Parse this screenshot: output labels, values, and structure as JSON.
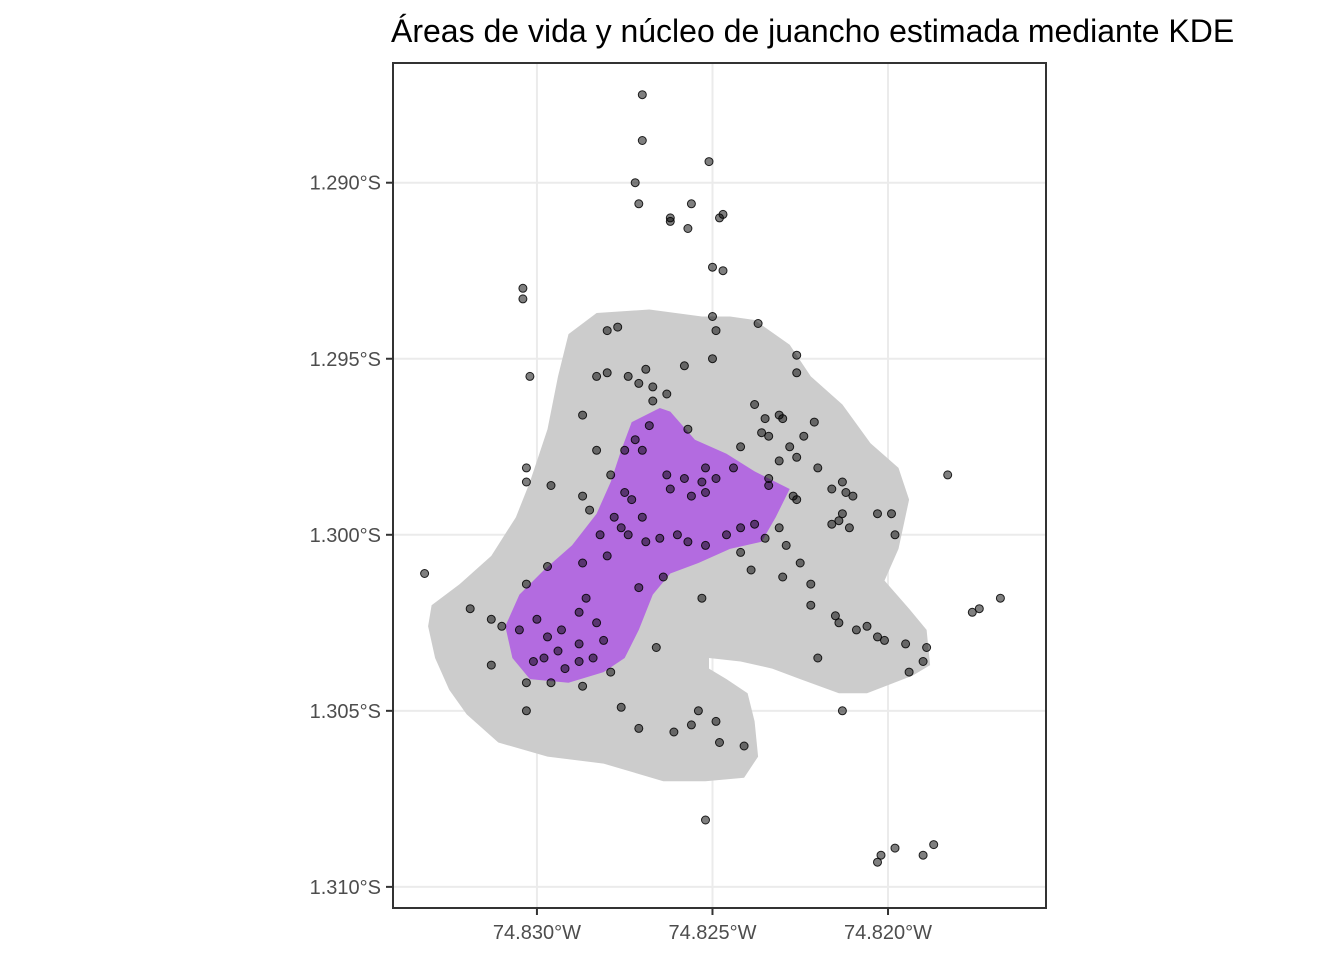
{
  "chart_data": {
    "type": "scatter",
    "title": "Áreas de vida y núcleo de juancho estimada mediante KDE",
    "xlabel": "",
    "ylabel": "",
    "x_ticks": [
      {
        "value": -74.83,
        "label": "74.830°W"
      },
      {
        "value": -74.825,
        "label": "74.825°W"
      },
      {
        "value": -74.82,
        "label": "74.820°W"
      }
    ],
    "y_ticks": [
      {
        "value": -1.29,
        "label": "1.290°S"
      },
      {
        "value": -1.295,
        "label": "1.295°S"
      },
      {
        "value": -1.3,
        "label": "1.300°S"
      },
      {
        "value": -1.305,
        "label": "1.305°S"
      },
      {
        "value": -1.31,
        "label": "1.310°S"
      }
    ],
    "xlim": [
      -74.8341,
      -74.8155
    ],
    "ylim": [
      -1.3106,
      -1.2866
    ],
    "grid": true,
    "colors": {
      "home_range_fill": "#cccccc",
      "core_area_fill": "#b36be0",
      "points": "#000000",
      "point_alpha": 0.5
    },
    "areas": [
      {
        "kind": "home_range",
        "polygon": [
          [
            -74.8283,
            -1.2937
          ],
          [
            -74.8268,
            -1.2936
          ],
          [
            -74.8253,
            -1.2938
          ],
          [
            -74.8245,
            -1.2938
          ],
          [
            -74.8238,
            -1.2939
          ],
          [
            -74.8228,
            -1.2946
          ],
          [
            -74.8222,
            -1.2955
          ],
          [
            -74.8213,
            -1.2963
          ],
          [
            -74.8205,
            -1.2974
          ],
          [
            -74.8197,
            -1.2981
          ],
          [
            -74.8194,
            -1.299
          ],
          [
            -74.8197,
            -1.3004
          ],
          [
            -74.8201,
            -1.3013
          ],
          [
            -74.8194,
            -1.3021
          ],
          [
            -74.8189,
            -1.3027
          ],
          [
            -74.8188,
            -1.3037
          ],
          [
            -74.8193,
            -1.304
          ],
          [
            -74.8206,
            -1.3045
          ],
          [
            -74.8214,
            -1.3045
          ],
          [
            -74.8225,
            -1.3041
          ],
          [
            -74.8233,
            -1.3038
          ],
          [
            -74.8242,
            -1.3036
          ],
          [
            -74.8251,
            -1.3035
          ],
          [
            -74.8251,
            -1.3038
          ],
          [
            -74.8246,
            -1.3041
          ],
          [
            -74.824,
            -1.3045
          ],
          [
            -74.8238,
            -1.3053
          ],
          [
            -74.8237,
            -1.3063
          ],
          [
            -74.8241,
            -1.3069
          ],
          [
            -74.8252,
            -1.307
          ],
          [
            -74.8264,
            -1.307
          ],
          [
            -74.8281,
            -1.3065
          ],
          [
            -74.8297,
            -1.3063
          ],
          [
            -74.8311,
            -1.3059
          ],
          [
            -74.832,
            -1.3051
          ],
          [
            -74.8325,
            -1.3044
          ],
          [
            -74.8329,
            -1.3035
          ],
          [
            -74.8331,
            -1.3026
          ],
          [
            -74.833,
            -1.302
          ],
          [
            -74.8322,
            -1.3014
          ],
          [
            -74.8313,
            -1.3006
          ],
          [
            -74.8306,
            -1.2995
          ],
          [
            -74.8302,
            -1.2985
          ],
          [
            -74.8297,
            -1.297
          ],
          [
            -74.8294,
            -1.2955
          ],
          [
            -74.8291,
            -1.2943
          ]
        ]
      },
      {
        "kind": "core_area",
        "polygon": [
          [
            -74.8273,
            -1.2968
          ],
          [
            -74.8265,
            -1.2964
          ],
          [
            -74.8262,
            -1.2965
          ],
          [
            -74.8255,
            -1.2973
          ],
          [
            -74.8246,
            -1.2977
          ],
          [
            -74.8238,
            -1.2982
          ],
          [
            -74.8228,
            -1.2987
          ],
          [
            -74.8232,
            -1.2995
          ],
          [
            -74.8236,
            -1.3002
          ],
          [
            -74.8245,
            -1.3004
          ],
          [
            -74.8254,
            -1.3008
          ],
          [
            -74.8262,
            -1.3011
          ],
          [
            -74.8267,
            -1.3017
          ],
          [
            -74.8271,
            -1.3027
          ],
          [
            -74.8275,
            -1.3035
          ],
          [
            -74.8281,
            -1.3039
          ],
          [
            -74.8291,
            -1.3042
          ],
          [
            -74.8302,
            -1.3041
          ],
          [
            -74.8307,
            -1.3035
          ],
          [
            -74.8309,
            -1.3026
          ],
          [
            -74.8305,
            -1.3017
          ],
          [
            -74.8298,
            -1.301
          ],
          [
            -74.829,
            -1.3003
          ],
          [
            -74.8283,
            -1.2994
          ],
          [
            -74.8279,
            -1.2985
          ],
          [
            -74.8276,
            -1.2976
          ]
        ]
      }
    ],
    "points": [
      [
        -74.827,
        -1.2875
      ],
      [
        -74.827,
        -1.2888
      ],
      [
        -74.8251,
        -1.2894
      ],
      [
        -74.8272,
        -1.29
      ],
      [
        -74.8271,
        -1.2906
      ],
      [
        -74.8262,
        -1.291
      ],
      [
        -74.8262,
        -1.2911
      ],
      [
        -74.8256,
        -1.2906
      ],
      [
        -74.8248,
        -1.291
      ],
      [
        -74.8247,
        -1.2909
      ],
      [
        -74.8257,
        -1.2913
      ],
      [
        -74.825,
        -1.2924
      ],
      [
        -74.8247,
        -1.2925
      ],
      [
        -74.8304,
        -1.293
      ],
      [
        -74.8304,
        -1.2933
      ],
      [
        -74.8237,
        -1.294
      ],
      [
        -74.825,
        -1.2938
      ],
      [
        -74.8249,
        -1.2942
      ],
      [
        -74.828,
        -1.2942
      ],
      [
        -74.8277,
        -1.2941
      ],
      [
        -74.8226,
        -1.2949
      ],
      [
        -74.825,
        -1.295
      ],
      [
        -74.8258,
        -1.2952
      ],
      [
        -74.8226,
        -1.2954
      ],
      [
        -74.8274,
        -1.2955
      ],
      [
        -74.8269,
        -1.2953
      ],
      [
        -74.8302,
        -1.2955
      ],
      [
        -74.8283,
        -1.2955
      ],
      [
        -74.828,
        -1.2954
      ],
      [
        -74.8271,
        -1.2957
      ],
      [
        -74.8267,
        -1.2958
      ],
      [
        -74.8287,
        -1.2966
      ],
      [
        -74.8267,
        -1.2962
      ],
      [
        -74.8263,
        -1.296
      ],
      [
        -74.8268,
        -1.2969
      ],
      [
        -74.8272,
        -1.2973
      ],
      [
        -74.8257,
        -1.297
      ],
      [
        -74.8238,
        -1.2963
      ],
      [
        -74.8235,
        -1.2967
      ],
      [
        -74.8231,
        -1.2966
      ],
      [
        -74.823,
        -1.2967
      ],
      [
        -74.8221,
        -1.2968
      ],
      [
        -74.8236,
        -1.2971
      ],
      [
        -74.8234,
        -1.2972
      ],
      [
        -74.8228,
        -1.2975
      ],
      [
        -74.8242,
        -1.2975
      ],
      [
        -74.8224,
        -1.2972
      ],
      [
        -74.8231,
        -1.2979
      ],
      [
        -74.8226,
        -1.2978
      ],
      [
        -74.822,
        -1.2981
      ],
      [
        -74.8303,
        -1.2981
      ],
      [
        -74.8303,
        -1.2985
      ],
      [
        -74.8296,
        -1.2986
      ],
      [
        -74.8283,
        -1.2976
      ],
      [
        -74.8275,
        -1.2976
      ],
      [
        -74.827,
        -1.2976
      ],
      [
        -74.8279,
        -1.2983
      ],
      [
        -74.8275,
        -1.2988
      ],
      [
        -74.8263,
        -1.2983
      ],
      [
        -74.8262,
        -1.2987
      ],
      [
        -74.8258,
        -1.2984
      ],
      [
        -74.8252,
        -1.2981
      ],
      [
        -74.8249,
        -1.2984
      ],
      [
        -74.8256,
        -1.2989
      ],
      [
        -74.8244,
        -1.2981
      ],
      [
        -74.8253,
        -1.2985
      ],
      [
        -74.8252,
        -1.2988
      ],
      [
        -74.8234,
        -1.2984
      ],
      [
        -74.8234,
        -1.2986
      ],
      [
        -74.8227,
        -1.2989
      ],
      [
        -74.8226,
        -1.299
      ],
      [
        -74.8213,
        -1.2985
      ],
      [
        -74.8216,
        -1.2987
      ],
      [
        -74.8212,
        -1.2988
      ],
      [
        -74.821,
        -1.2989
      ],
      [
        -74.8203,
        -1.2994
      ],
      [
        -74.8199,
        -1.2994
      ],
      [
        -74.8213,
        -1.2994
      ],
      [
        -74.8214,
        -1.2996
      ],
      [
        -74.8211,
        -1.2998
      ],
      [
        -74.8198,
        -1.3
      ],
      [
        -74.8183,
        -1.2983
      ],
      [
        -74.8287,
        -1.2989
      ],
      [
        -74.8285,
        -1.2993
      ],
      [
        -74.8278,
        -1.2995
      ],
      [
        -74.8273,
        -1.299
      ],
      [
        -74.827,
        -1.2995
      ],
      [
        -74.8276,
        -1.2998
      ],
      [
        -74.8282,
        -1.3
      ],
      [
        -74.8274,
        -1.3
      ],
      [
        -74.8269,
        -1.3002
      ],
      [
        -74.8265,
        -1.3001
      ],
      [
        -74.826,
        -1.3
      ],
      [
        -74.8257,
        -1.3002
      ],
      [
        -74.8252,
        -1.3003
      ],
      [
        -74.8246,
        -1.3
      ],
      [
        -74.8242,
        -1.2998
      ],
      [
        -74.8238,
        -1.2997
      ],
      [
        -74.8235,
        -1.3001
      ],
      [
        -74.8231,
        -1.2998
      ],
      [
        -74.8229,
        -1.3003
      ],
      [
        -74.8225,
        -1.3008
      ],
      [
        -74.823,
        -1.3012
      ],
      [
        -74.8239,
        -1.301
      ],
      [
        -74.8253,
        -1.3018
      ],
      [
        -74.8264,
        -1.3012
      ],
      [
        -74.8271,
        -1.3015
      ],
      [
        -74.828,
        -1.3006
      ],
      [
        -74.8287,
        -1.3008
      ],
      [
        -74.8297,
        -1.3009
      ],
      [
        -74.8303,
        -1.3014
      ],
      [
        -74.8332,
        -1.3011
      ],
      [
        -74.8319,
        -1.3021
      ],
      [
        -74.8313,
        -1.3024
      ],
      [
        -74.831,
        -1.3026
      ],
      [
        -74.8305,
        -1.3027
      ],
      [
        -74.83,
        -1.3024
      ],
      [
        -74.8297,
        -1.3029
      ],
      [
        -74.8293,
        -1.3027
      ],
      [
        -74.8288,
        -1.3022
      ],
      [
        -74.8286,
        -1.3018
      ],
      [
        -74.8283,
        -1.3025
      ],
      [
        -74.8281,
        -1.303
      ],
      [
        -74.8288,
        -1.3031
      ],
      [
        -74.8294,
        -1.3033
      ],
      [
        -74.8298,
        -1.3035
      ],
      [
        -74.8301,
        -1.3036
      ],
      [
        -74.8292,
        -1.3038
      ],
      [
        -74.8288,
        -1.3036
      ],
      [
        -74.8284,
        -1.3035
      ],
      [
        -74.8279,
        -1.3039
      ],
      [
        -74.8287,
        -1.3043
      ],
      [
        -74.8296,
        -1.3042
      ],
      [
        -74.8303,
        -1.3042
      ],
      [
        -74.8313,
        -1.3037
      ],
      [
        -74.8303,
        -1.305
      ],
      [
        -74.8276,
        -1.3049
      ],
      [
        -74.8271,
        -1.3055
      ],
      [
        -74.8261,
        -1.3056
      ],
      [
        -74.8256,
        -1.3054
      ],
      [
        -74.8249,
        -1.3053
      ],
      [
        -74.8248,
        -1.3059
      ],
      [
        -74.8241,
        -1.306
      ],
      [
        -74.8254,
        -1.305
      ],
      [
        -74.8222,
        -1.302
      ],
      [
        -74.8215,
        -1.3023
      ],
      [
        -74.8214,
        -1.3025
      ],
      [
        -74.8209,
        -1.3027
      ],
      [
        -74.8206,
        -1.3026
      ],
      [
        -74.8203,
        -1.3029
      ],
      [
        -74.8201,
        -1.303
      ],
      [
        -74.8195,
        -1.3031
      ],
      [
        -74.8189,
        -1.3032
      ],
      [
        -74.819,
        -1.3036
      ],
      [
        -74.8194,
        -1.3039
      ],
      [
        -74.822,
        -1.3035
      ],
      [
        -74.8213,
        -1.305
      ],
      [
        -74.8176,
        -1.3022
      ],
      [
        -74.8174,
        -1.3021
      ],
      [
        -74.8168,
        -1.3018
      ],
      [
        -74.8202,
        -1.3091
      ],
      [
        -74.8203,
        -1.3093
      ],
      [
        -74.8198,
        -1.3089
      ],
      [
        -74.819,
        -1.3091
      ],
      [
        -74.8187,
        -1.3088
      ],
      [
        -74.8252,
        -1.3081
      ],
      [
        -74.8216,
        -1.2997
      ],
      [
        -74.8222,
        -1.3014
      ],
      [
        -74.8242,
        -1.3005
      ],
      [
        -74.8266,
        -1.3032
      ]
    ]
  }
}
